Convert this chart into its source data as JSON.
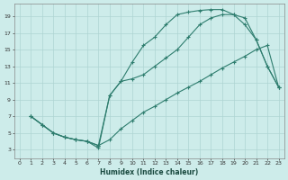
{
  "xlabel": "Humidex (Indice chaleur)",
  "bg_color": "#cdecea",
  "grid_color": "#aed4d2",
  "line_color": "#2e7d6e",
  "xlim": [
    -0.5,
    23.5
  ],
  "ylim": [
    2,
    20.5
  ],
  "xticks": [
    0,
    1,
    2,
    3,
    4,
    5,
    6,
    7,
    8,
    9,
    10,
    11,
    12,
    13,
    14,
    15,
    16,
    17,
    18,
    19,
    20,
    21,
    22,
    23
  ],
  "yticks": [
    3,
    5,
    7,
    9,
    11,
    13,
    15,
    17,
    19
  ],
  "curve1_x": [
    1,
    2,
    3,
    4,
    5,
    6,
    7,
    8,
    9,
    10,
    11,
    12,
    13,
    14,
    15,
    16,
    17,
    18,
    19,
    20,
    21,
    22,
    23
  ],
  "curve1_y": [
    7.0,
    6.0,
    5.0,
    4.5,
    4.2,
    4.0,
    3.2,
    9.5,
    11.2,
    13.5,
    15.5,
    16.5,
    18.0,
    19.2,
    19.5,
    19.7,
    19.8,
    19.8,
    19.2,
    18.0,
    16.2,
    13.0,
    10.5
  ],
  "curve2_x": [
    1,
    2,
    3,
    4,
    5,
    6,
    7,
    8,
    9,
    10,
    11,
    12,
    13,
    14,
    15,
    16,
    17,
    18,
    19,
    20,
    21,
    22,
    23
  ],
  "curve2_y": [
    7.0,
    6.0,
    5.0,
    4.5,
    4.2,
    4.0,
    3.5,
    9.5,
    11.2,
    11.5,
    12.0,
    13.0,
    14.0,
    15.0,
    16.5,
    18.0,
    18.8,
    19.2,
    19.2,
    18.8,
    16.2,
    13.0,
    10.5
  ],
  "curve3_x": [
    1,
    2,
    3,
    4,
    5,
    6,
    7,
    8,
    9,
    10,
    11,
    12,
    13,
    14,
    15,
    16,
    17,
    18,
    19,
    20,
    21,
    22,
    23
  ],
  "curve3_y": [
    7.0,
    6.0,
    5.0,
    4.5,
    4.2,
    4.0,
    3.5,
    4.2,
    5.5,
    6.5,
    7.5,
    8.2,
    9.0,
    9.8,
    10.5,
    11.2,
    12.0,
    12.8,
    13.5,
    14.2,
    15.0,
    15.5,
    10.5
  ]
}
